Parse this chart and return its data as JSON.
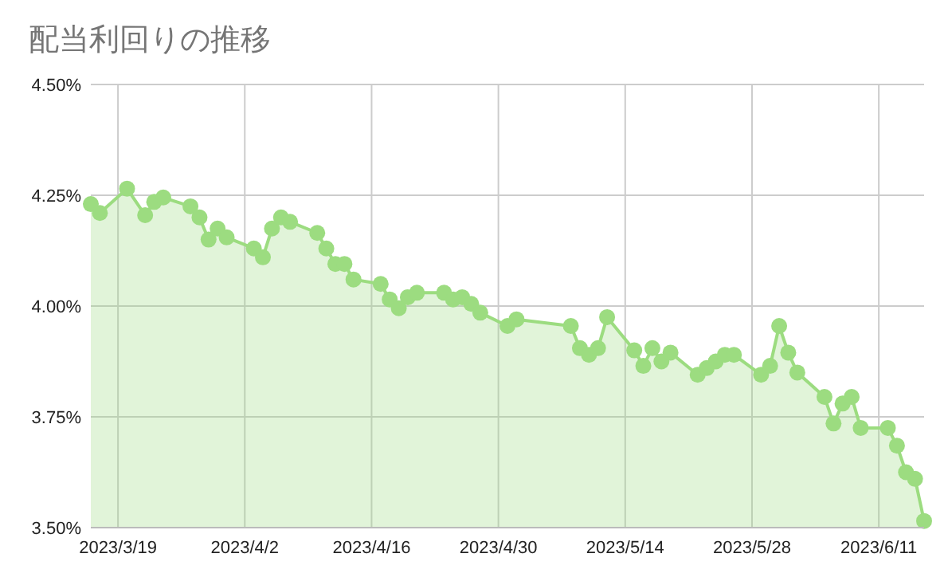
{
  "chart_data": {
    "type": "area",
    "title": "配当利回りの推移",
    "x": [
      "2023-03-16",
      "2023-03-17",
      "2023-03-20",
      "2023-03-22",
      "2023-03-23",
      "2023-03-24",
      "2023-03-27",
      "2023-03-28",
      "2023-03-29",
      "2023-03-30",
      "2023-03-31",
      "2023-04-03",
      "2023-04-04",
      "2023-04-05",
      "2023-04-06",
      "2023-04-07",
      "2023-04-10",
      "2023-04-11",
      "2023-04-12",
      "2023-04-13",
      "2023-04-14",
      "2023-04-17",
      "2023-04-18",
      "2023-04-19",
      "2023-04-20",
      "2023-04-21",
      "2023-04-24",
      "2023-04-25",
      "2023-04-26",
      "2023-04-27",
      "2023-04-28",
      "2023-05-01",
      "2023-05-02",
      "2023-05-08",
      "2023-05-09",
      "2023-05-10",
      "2023-05-11",
      "2023-05-12",
      "2023-05-15",
      "2023-05-16",
      "2023-05-17",
      "2023-05-18",
      "2023-05-19",
      "2023-05-22",
      "2023-05-23",
      "2023-05-24",
      "2023-05-25",
      "2023-05-26",
      "2023-05-29",
      "2023-05-30",
      "2023-05-31",
      "2023-06-01",
      "2023-06-02",
      "2023-06-05",
      "2023-06-06",
      "2023-06-07",
      "2023-06-08",
      "2023-06-09",
      "2023-06-12",
      "2023-06-13",
      "2023-06-14",
      "2023-06-15",
      "2023-06-16"
    ],
    "values": [
      4.23,
      4.21,
      4.265,
      4.205,
      4.235,
      4.245,
      4.225,
      4.2,
      4.15,
      4.175,
      4.155,
      4.13,
      4.11,
      4.175,
      4.2,
      4.19,
      4.165,
      4.13,
      4.095,
      4.095,
      4.06,
      4.05,
      4.015,
      3.995,
      4.02,
      4.03,
      4.03,
      4.015,
      4.02,
      4.005,
      3.985,
      3.955,
      3.97,
      3.955,
      3.905,
      3.89,
      3.905,
      3.975,
      3.9,
      3.865,
      3.905,
      3.875,
      3.895,
      3.845,
      3.86,
      3.875,
      3.89,
      3.89,
      3.845,
      3.865,
      3.955,
      3.895,
      3.85,
      3.795,
      3.735,
      3.78,
      3.795,
      3.725,
      3.725,
      3.685,
      3.625,
      3.61,
      3.515
    ],
    "color": "#9cdc80",
    "xlim": [
      "2023-03-16",
      "2023-06-16"
    ],
    "ylim": [
      3.5,
      4.5
    ],
    "xticks": [
      {
        "value": "2023-03-19",
        "label": "2023/3/19"
      },
      {
        "value": "2023-04-02",
        "label": "2023/4/2"
      },
      {
        "value": "2023-04-16",
        "label": "2023/4/16"
      },
      {
        "value": "2023-04-30",
        "label": "2023/4/30"
      },
      {
        "value": "2023-05-14",
        "label": "2023/5/14"
      },
      {
        "value": "2023-05-28",
        "label": "2023/5/28"
      },
      {
        "value": "2023-06-11",
        "label": "2023/6/11"
      }
    ],
    "yticks": [
      {
        "value": 3.5,
        "label": "3.50%"
      },
      {
        "value": 3.75,
        "label": "3.75%"
      },
      {
        "value": 4.0,
        "label": "4.00%"
      },
      {
        "value": 4.25,
        "label": "4.25%"
      },
      {
        "value": 4.5,
        "label": "4.50%"
      }
    ],
    "grid": true,
    "marker": "circle",
    "line_style": "solid"
  }
}
